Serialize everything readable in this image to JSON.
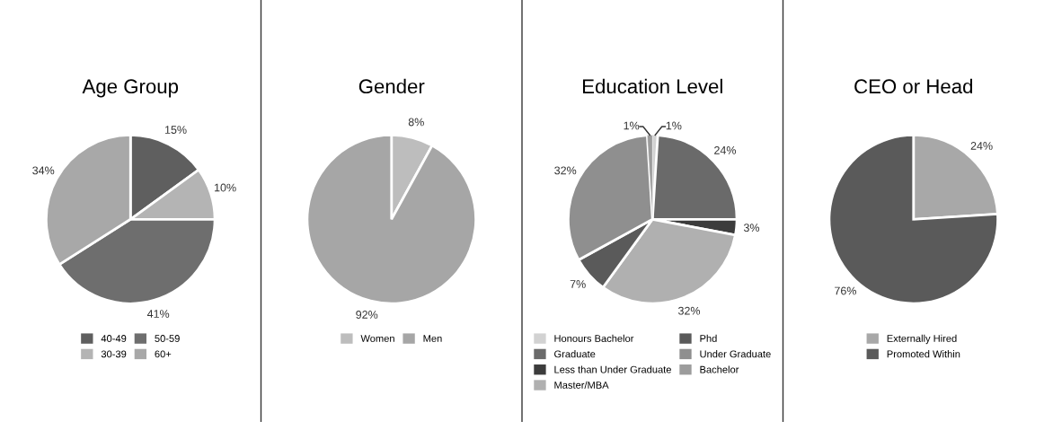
{
  "chart_data": [
    {
      "type": "pie",
      "title": "Age Group",
      "categories": [
        "40-49",
        "30-39",
        "50-59",
        "60+"
      ],
      "values": [
        15,
        10,
        41,
        34
      ],
      "colors": [
        "#5f5f5f",
        "#b4b4b4",
        "#6e6e6e",
        "#a8a8a8"
      ],
      "value_labels": [
        "15%",
        "10%",
        "41%",
        "34%"
      ],
      "legend": "bottom"
    },
    {
      "type": "pie",
      "title": "Gender",
      "categories": [
        "Women",
        "Men"
      ],
      "values": [
        8,
        92
      ],
      "colors": [
        "#bdbdbd",
        "#a6a6a6"
      ],
      "value_labels": [
        "8%",
        "92%"
      ],
      "legend": "bottom"
    },
    {
      "type": "pie",
      "title": "Education Level",
      "categories": [
        "Honours Bachelor",
        "Graduate",
        "Less than Under Graduate",
        "Master/MBA",
        "Phd",
        "Under Graduate",
        "Bachelor"
      ],
      "values": [
        1,
        24,
        3,
        32,
        7,
        32,
        1
      ],
      "colors": [
        "#d2d2d2",
        "#6a6a6a",
        "#3c3c3c",
        "#b0b0b0",
        "#5a5a5a",
        "#8f8f8f",
        "#9c9c9c"
      ],
      "value_labels": [
        "1%",
        "24%",
        "3%",
        "32%",
        "7%",
        "32%",
        "1%"
      ],
      "legend": "bottom"
    },
    {
      "type": "pie",
      "title": "CEO or Head",
      "categories": [
        "Externally Hired",
        "Promoted Within"
      ],
      "values": [
        24,
        76
      ],
      "colors": [
        "#a8a8a8",
        "#5a5a5a"
      ],
      "value_labels": [
        "24%",
        "76%"
      ],
      "legend": "bottom"
    }
  ]
}
